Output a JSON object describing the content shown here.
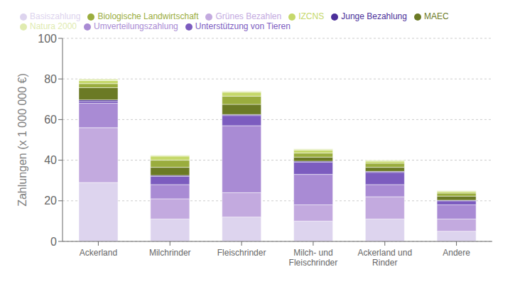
{
  "chart_data": {
    "type": "bar",
    "stacked": true,
    "categories": [
      "Ackerland",
      "Milchrinder",
      "Fleischrinder",
      "Milch- und\nFleischrinder",
      "Ackerland und\nRinder",
      "Andere"
    ],
    "series": [
      {
        "name": "Basiszahlung",
        "color": "#ddd4ee",
        "values": [
          29.0,
          11.0,
          12.0,
          10.0,
          11.0,
          5.0
        ]
      },
      {
        "name": "Grünes Bezahlen",
        "color": "#c3aadf",
        "values": [
          27.0,
          10.0,
          12.0,
          8.0,
          11.0,
          6.0
        ]
      },
      {
        "name": "Umverteilungszahlung",
        "color": "#a98bd4",
        "values": [
          12.0,
          7.0,
          33.0,
          15.0,
          6.0,
          7.0
        ]
      },
      {
        "name": "Unterstützung von Tieren",
        "color": "#7c5cbf",
        "values": [
          1.0,
          4.0,
          5.0,
          6.0,
          6.0,
          2.0
        ]
      },
      {
        "name": "Junge Bezahlung",
        "color": "#4b2f9a",
        "values": [
          0.7,
          0.5,
          0.5,
          0.5,
          0.5,
          0.3
        ]
      },
      {
        "name": "MAEC",
        "color": "#6b7a25",
        "values": [
          6.0,
          4.0,
          5.0,
          2.0,
          2.0,
          2.0
        ]
      },
      {
        "name": "Biologische Landwirtschaft",
        "color": "#9aad3e",
        "values": [
          2.0,
          3.5,
          4.0,
          2.0,
          2.0,
          1.5
        ]
      },
      {
        "name": "IZCNS",
        "color": "#c5d86a",
        "values": [
          1.5,
          2.0,
          2.0,
          1.5,
          1.0,
          0.8
        ]
      },
      {
        "name": "Natura 2000",
        "color": "#e0ebb0",
        "values": [
          0.8,
          0.5,
          0.5,
          0.5,
          0.5,
          0.4
        ]
      }
    ],
    "ylabel": "Zahlungen (x 1 000 000 €)",
    "ylim": [
      0,
      100
    ],
    "yticks": [
      0,
      20,
      40,
      60,
      80,
      100
    ],
    "grid": true,
    "legend": "upper left"
  }
}
